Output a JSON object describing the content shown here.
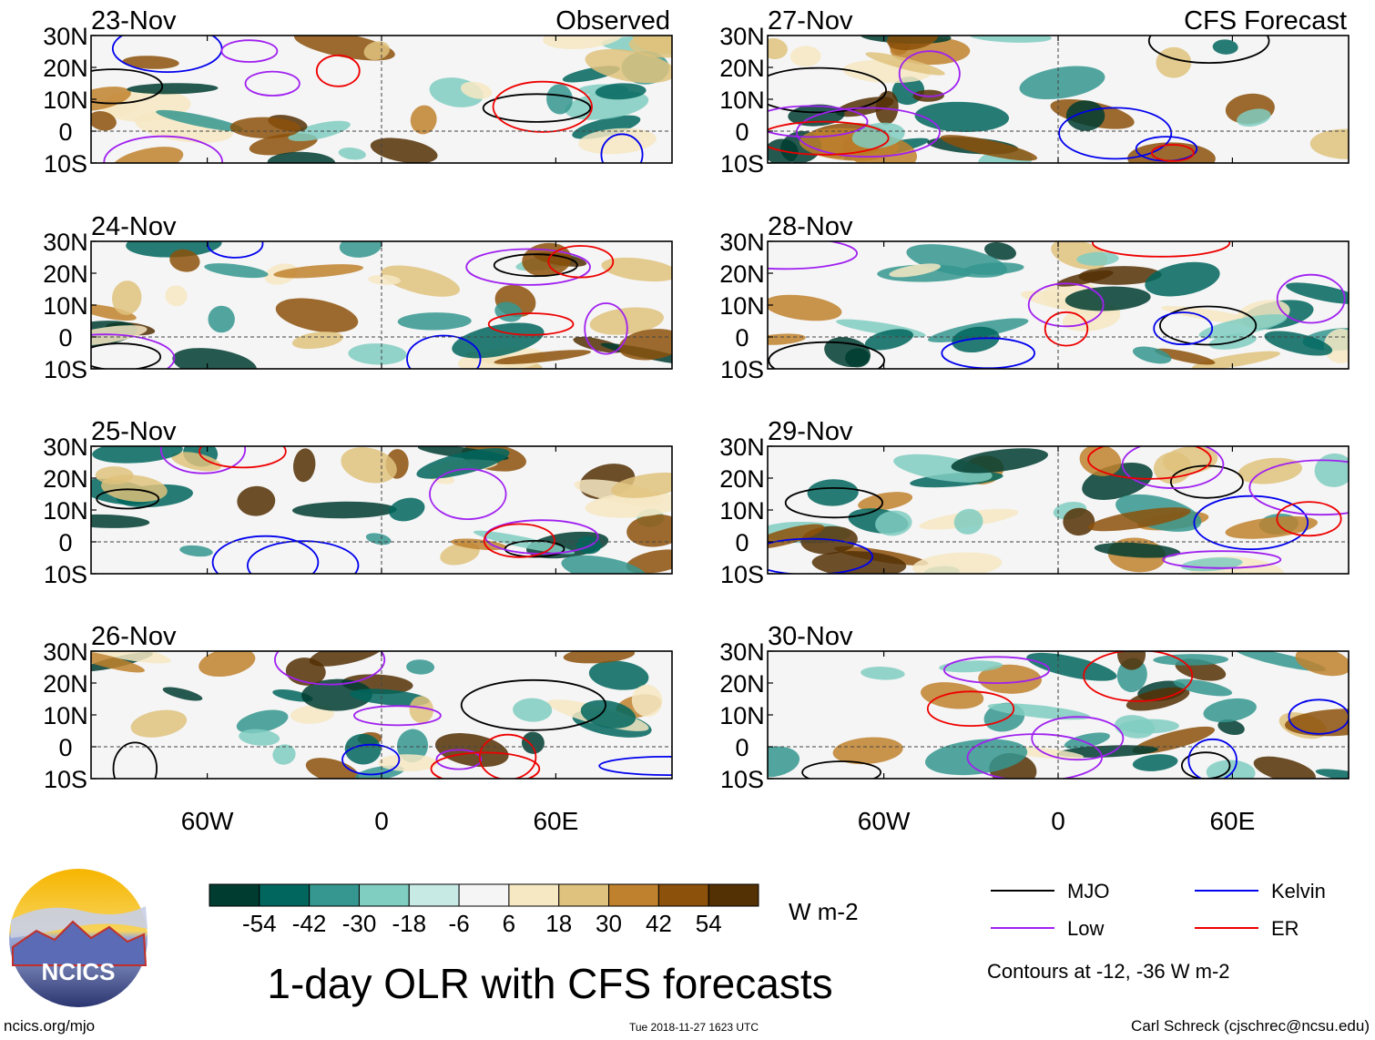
{
  "title": "1-day OLR with CFS forecasts",
  "source_link": "ncics.org/mjo",
  "timestamp": "Tue 2018-11-27 1623 UTC",
  "author": "Carl Schreck (cjschrec@ncsu.edu)",
  "logo_text": "NCICS",
  "colors": {
    "mjo": "#000000",
    "kelvin": "#0000ee",
    "low": "#a020f0",
    "er": "#ee0000",
    "colorbar": [
      "#003c30",
      "#01665e",
      "#35978f",
      "#80cdc1",
      "#c7eae5",
      "#f5f5f5",
      "#f6e8c3",
      "#dfc27d",
      "#bf812d",
      "#8c510a",
      "#543005"
    ]
  },
  "chart_data": {
    "type": "heatmap",
    "variable": "Outgoing Longwave Radiation anomaly",
    "units": "W m-2",
    "columns": [
      {
        "label": "Observed",
        "dates": [
          "23-Nov",
          "24-Nov",
          "25-Nov",
          "26-Nov"
        ]
      },
      {
        "label": "CFS Forecast",
        "dates": [
          "27-Nov",
          "28-Nov",
          "29-Nov",
          "30-Nov"
        ]
      }
    ],
    "lon_range": [
      -100,
      100
    ],
    "lat_range": [
      -10,
      30
    ],
    "lat_ticks": [
      {
        "value": 30,
        "label": "30N"
      },
      {
        "value": 20,
        "label": "20N"
      },
      {
        "value": 10,
        "label": "10N"
      },
      {
        "value": 0,
        "label": "0"
      },
      {
        "value": -10,
        "label": "10S"
      }
    ],
    "lon_ticks": [
      {
        "value": -60,
        "label": "60W"
      },
      {
        "value": 0,
        "label": "0"
      },
      {
        "value": 60,
        "label": "60E"
      }
    ],
    "colorbar_levels": [
      "-54",
      "-42",
      "-30",
      "-18",
      "-6",
      "6",
      "18",
      "30",
      "42",
      "54"
    ],
    "legend": [
      {
        "name": "MJO",
        "key": "mjo"
      },
      {
        "name": "Kelvin",
        "key": "kelvin"
      },
      {
        "name": "Low",
        "key": "low"
      },
      {
        "name": "ER",
        "key": "er"
      }
    ],
    "contour_note": "Contours at -12, -36 W m-2"
  }
}
